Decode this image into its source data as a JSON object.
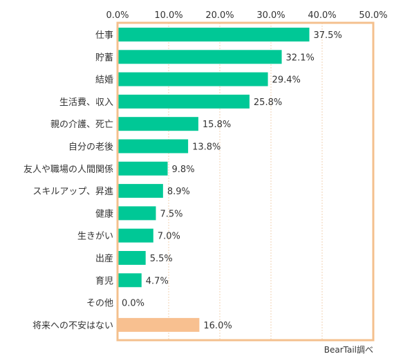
{
  "colors": {
    "bar": "#00c896",
    "highlight_bar": "#f8c090",
    "frame": "#f4c08e",
    "grid": "#f0d2b0",
    "text": "#333333"
  },
  "chart_data": {
    "type": "bar",
    "orientation": "horizontal",
    "xlim": [
      0,
      50
    ],
    "ticks": [
      "0.0%",
      "10.0%",
      "20.0%",
      "30.0%",
      "40.0%",
      "50.0%"
    ],
    "tick_values": [
      0,
      10,
      20,
      30,
      40,
      50
    ],
    "grid": true,
    "categories": [
      "仕事",
      "貯蓄",
      "結婚",
      "生活費、収入",
      "親の介護、死亡",
      "自分の老後",
      "友人や職場の人間関係",
      "スキルアップ、昇進",
      "健康",
      "生きがい",
      "出産",
      "育児",
      "その他",
      "将来への不安はない"
    ],
    "values": [
      37.5,
      32.1,
      29.4,
      25.8,
      15.8,
      13.8,
      9.8,
      8.9,
      7.5,
      7.0,
      5.5,
      4.7,
      0.0,
      16.0
    ],
    "value_labels": [
      "37.5%",
      "32.1%",
      "29.4%",
      "25.8%",
      "15.8%",
      "13.8%",
      "9.8%",
      "8.9%",
      "7.5%",
      "7.0%",
      "5.5%",
      "4.7%",
      "0.0%",
      "16.0%"
    ],
    "highlight_index": 13,
    "source": "BearTail調べ"
  }
}
